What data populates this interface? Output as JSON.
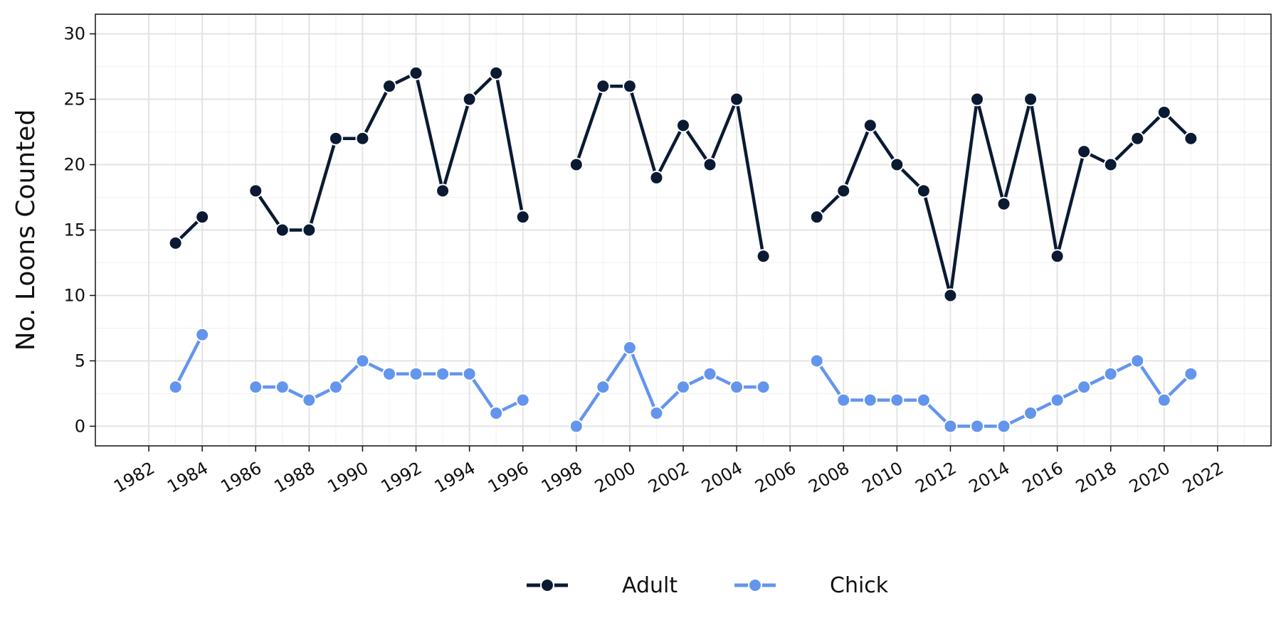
{
  "chart_data": {
    "type": "line",
    "title": "",
    "xlabel": "",
    "ylabel": "No. Loons Counted",
    "xlim": [
      1980,
      2024
    ],
    "ylim": [
      -1.5,
      31.5
    ],
    "x_ticks": [
      "1982",
      "1984",
      "1986",
      "1988",
      "1990",
      "1992",
      "1994",
      "1996",
      "1998",
      "2000",
      "2002",
      "2004",
      "2006",
      "2008",
      "2010",
      "2012",
      "2014",
      "2016",
      "2018",
      "2020",
      "2022"
    ],
    "y_ticks": [
      "0",
      "5",
      "10",
      "15",
      "20",
      "25",
      "30"
    ],
    "grid": true,
    "legend_position": "bottom",
    "x": [
      1983,
      1984,
      1985,
      1986,
      1987,
      1988,
      1989,
      1990,
      1991,
      1992,
      1993,
      1994,
      1995,
      1996,
      1997,
      1998,
      1999,
      2000,
      2001,
      2002,
      2003,
      2004,
      2005,
      2006,
      2007,
      2008,
      2009,
      2010,
      2011,
      2012,
      2013,
      2014,
      2015,
      2016,
      2017,
      2018,
      2019,
      2020,
      2021
    ],
    "series": [
      {
        "name": "Adult",
        "color": "#0b1a33",
        "values": [
          14,
          16,
          null,
          18,
          15,
          15,
          22,
          22,
          26,
          27,
          18,
          25,
          27,
          16,
          null,
          20,
          26,
          26,
          19,
          23,
          20,
          25,
          13,
          null,
          16,
          18,
          23,
          20,
          18,
          10,
          25,
          17,
          25,
          13,
          21,
          20,
          22,
          24,
          22
        ]
      },
      {
        "name": "Chick",
        "color": "#6495ed",
        "values": [
          3,
          7,
          null,
          3,
          3,
          2,
          3,
          5,
          4,
          4,
          4,
          4,
          1,
          2,
          null,
          0,
          3,
          6,
          1,
          3,
          4,
          3,
          3,
          null,
          5,
          2,
          2,
          2,
          2,
          0,
          0,
          0,
          1,
          2,
          3,
          4,
          5,
          2,
          4
        ]
      }
    ]
  }
}
